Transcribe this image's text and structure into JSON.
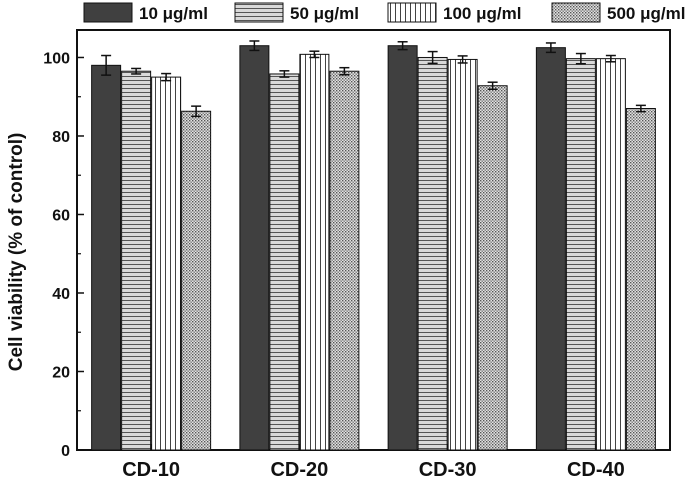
{
  "chart_data": {
    "type": "bar",
    "title": "",
    "xlabel": "",
    "ylabel": "Cell viability (% of control)",
    "categories": [
      "CD-10",
      "CD-20",
      "CD-30",
      "CD-40"
    ],
    "ylim": [
      0,
      107
    ],
    "yticks": [
      0,
      20,
      40,
      60,
      80,
      100
    ],
    "grid": false,
    "legend_position": "top",
    "series": [
      {
        "name": "10 μg/ml",
        "pattern": "solid",
        "color": "#404040",
        "values": [
          98.0,
          103.0,
          103.0,
          102.5
        ],
        "errors": [
          2.5,
          1.2,
          1.0,
          1.2
        ]
      },
      {
        "name": "50 μg/ml",
        "pattern": "horizontal",
        "color": "#bdbdbd",
        "values": [
          96.5,
          95.8,
          100.0,
          99.7
        ],
        "errors": [
          0.7,
          0.8,
          1.5,
          1.3
        ]
      },
      {
        "name": "100 μg/ml",
        "pattern": "vertical",
        "color": "#ffffff",
        "values": [
          95.0,
          100.8,
          99.5,
          99.7
        ],
        "errors": [
          0.9,
          0.8,
          0.9,
          0.8
        ]
      },
      {
        "name": "500 μg/ml",
        "pattern": "dots",
        "color": "#b0b0b0",
        "values": [
          86.3,
          96.5,
          92.8,
          87.0
        ],
        "errors": [
          1.3,
          0.9,
          0.9,
          0.8
        ]
      }
    ]
  }
}
